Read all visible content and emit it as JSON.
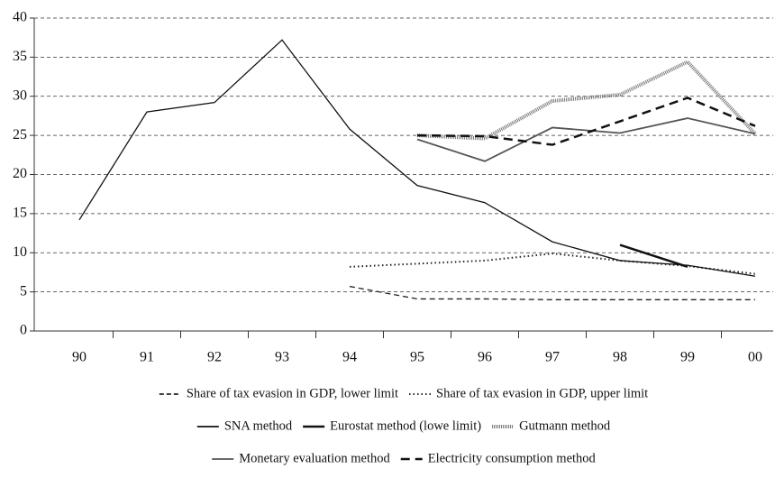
{
  "chart_data": {
    "type": "line",
    "categories": [
      "90",
      "91",
      "92",
      "93",
      "94",
      "95",
      "96",
      "97",
      "98",
      "99",
      "00"
    ],
    "ylim": [
      0,
      40
    ],
    "yticks": [
      0,
      5,
      10,
      15,
      20,
      25,
      30,
      35,
      40
    ],
    "grid": true,
    "series": [
      {
        "name": "Share of tax evasion in GDP, lower limit",
        "color": "#222222",
        "dash": "dashed",
        "values": [
          null,
          null,
          null,
          null,
          5.7,
          4.1,
          4.1,
          4.0,
          4.0,
          4.0,
          4.0
        ]
      },
      {
        "name": "Share of tax evasion in GDP, upper limit",
        "color": "#222222",
        "dash": "dotted",
        "values": [
          null,
          null,
          null,
          null,
          8.2,
          8.6,
          9.0,
          9.9,
          9.0,
          8.3,
          7.3
        ]
      },
      {
        "name": "SNA method",
        "color": "#111111",
        "dash": "solid",
        "values": [
          14.2,
          28.0,
          29.2,
          37.2,
          25.8,
          18.6,
          16.4,
          11.4,
          9.0,
          8.4,
          7.0
        ]
      },
      {
        "name": "Eurostat method (lowe limit)",
        "color": "#111111",
        "dash": "thick",
        "values": [
          null,
          null,
          null,
          null,
          null,
          null,
          null,
          null,
          11.0,
          8.2,
          null
        ]
      },
      {
        "name": "Gutmann method",
        "color": "#777777",
        "dash": "double",
        "values": [
          null,
          null,
          null,
          null,
          null,
          25.0,
          24.6,
          29.4,
          30.2,
          34.4,
          25.2
        ]
      },
      {
        "name": "Monetary evaluation method",
        "color": "#555555",
        "dash": "solid",
        "values": [
          null,
          null,
          null,
          null,
          null,
          24.5,
          21.7,
          26.0,
          25.3,
          27.2,
          25.2
        ]
      },
      {
        "name": "Electricity consumption method",
        "color": "#111111",
        "dash": "longdash",
        "values": [
          null,
          null,
          null,
          null,
          null,
          25.0,
          24.9,
          23.8,
          26.8,
          29.8,
          26.2
        ]
      }
    ]
  }
}
